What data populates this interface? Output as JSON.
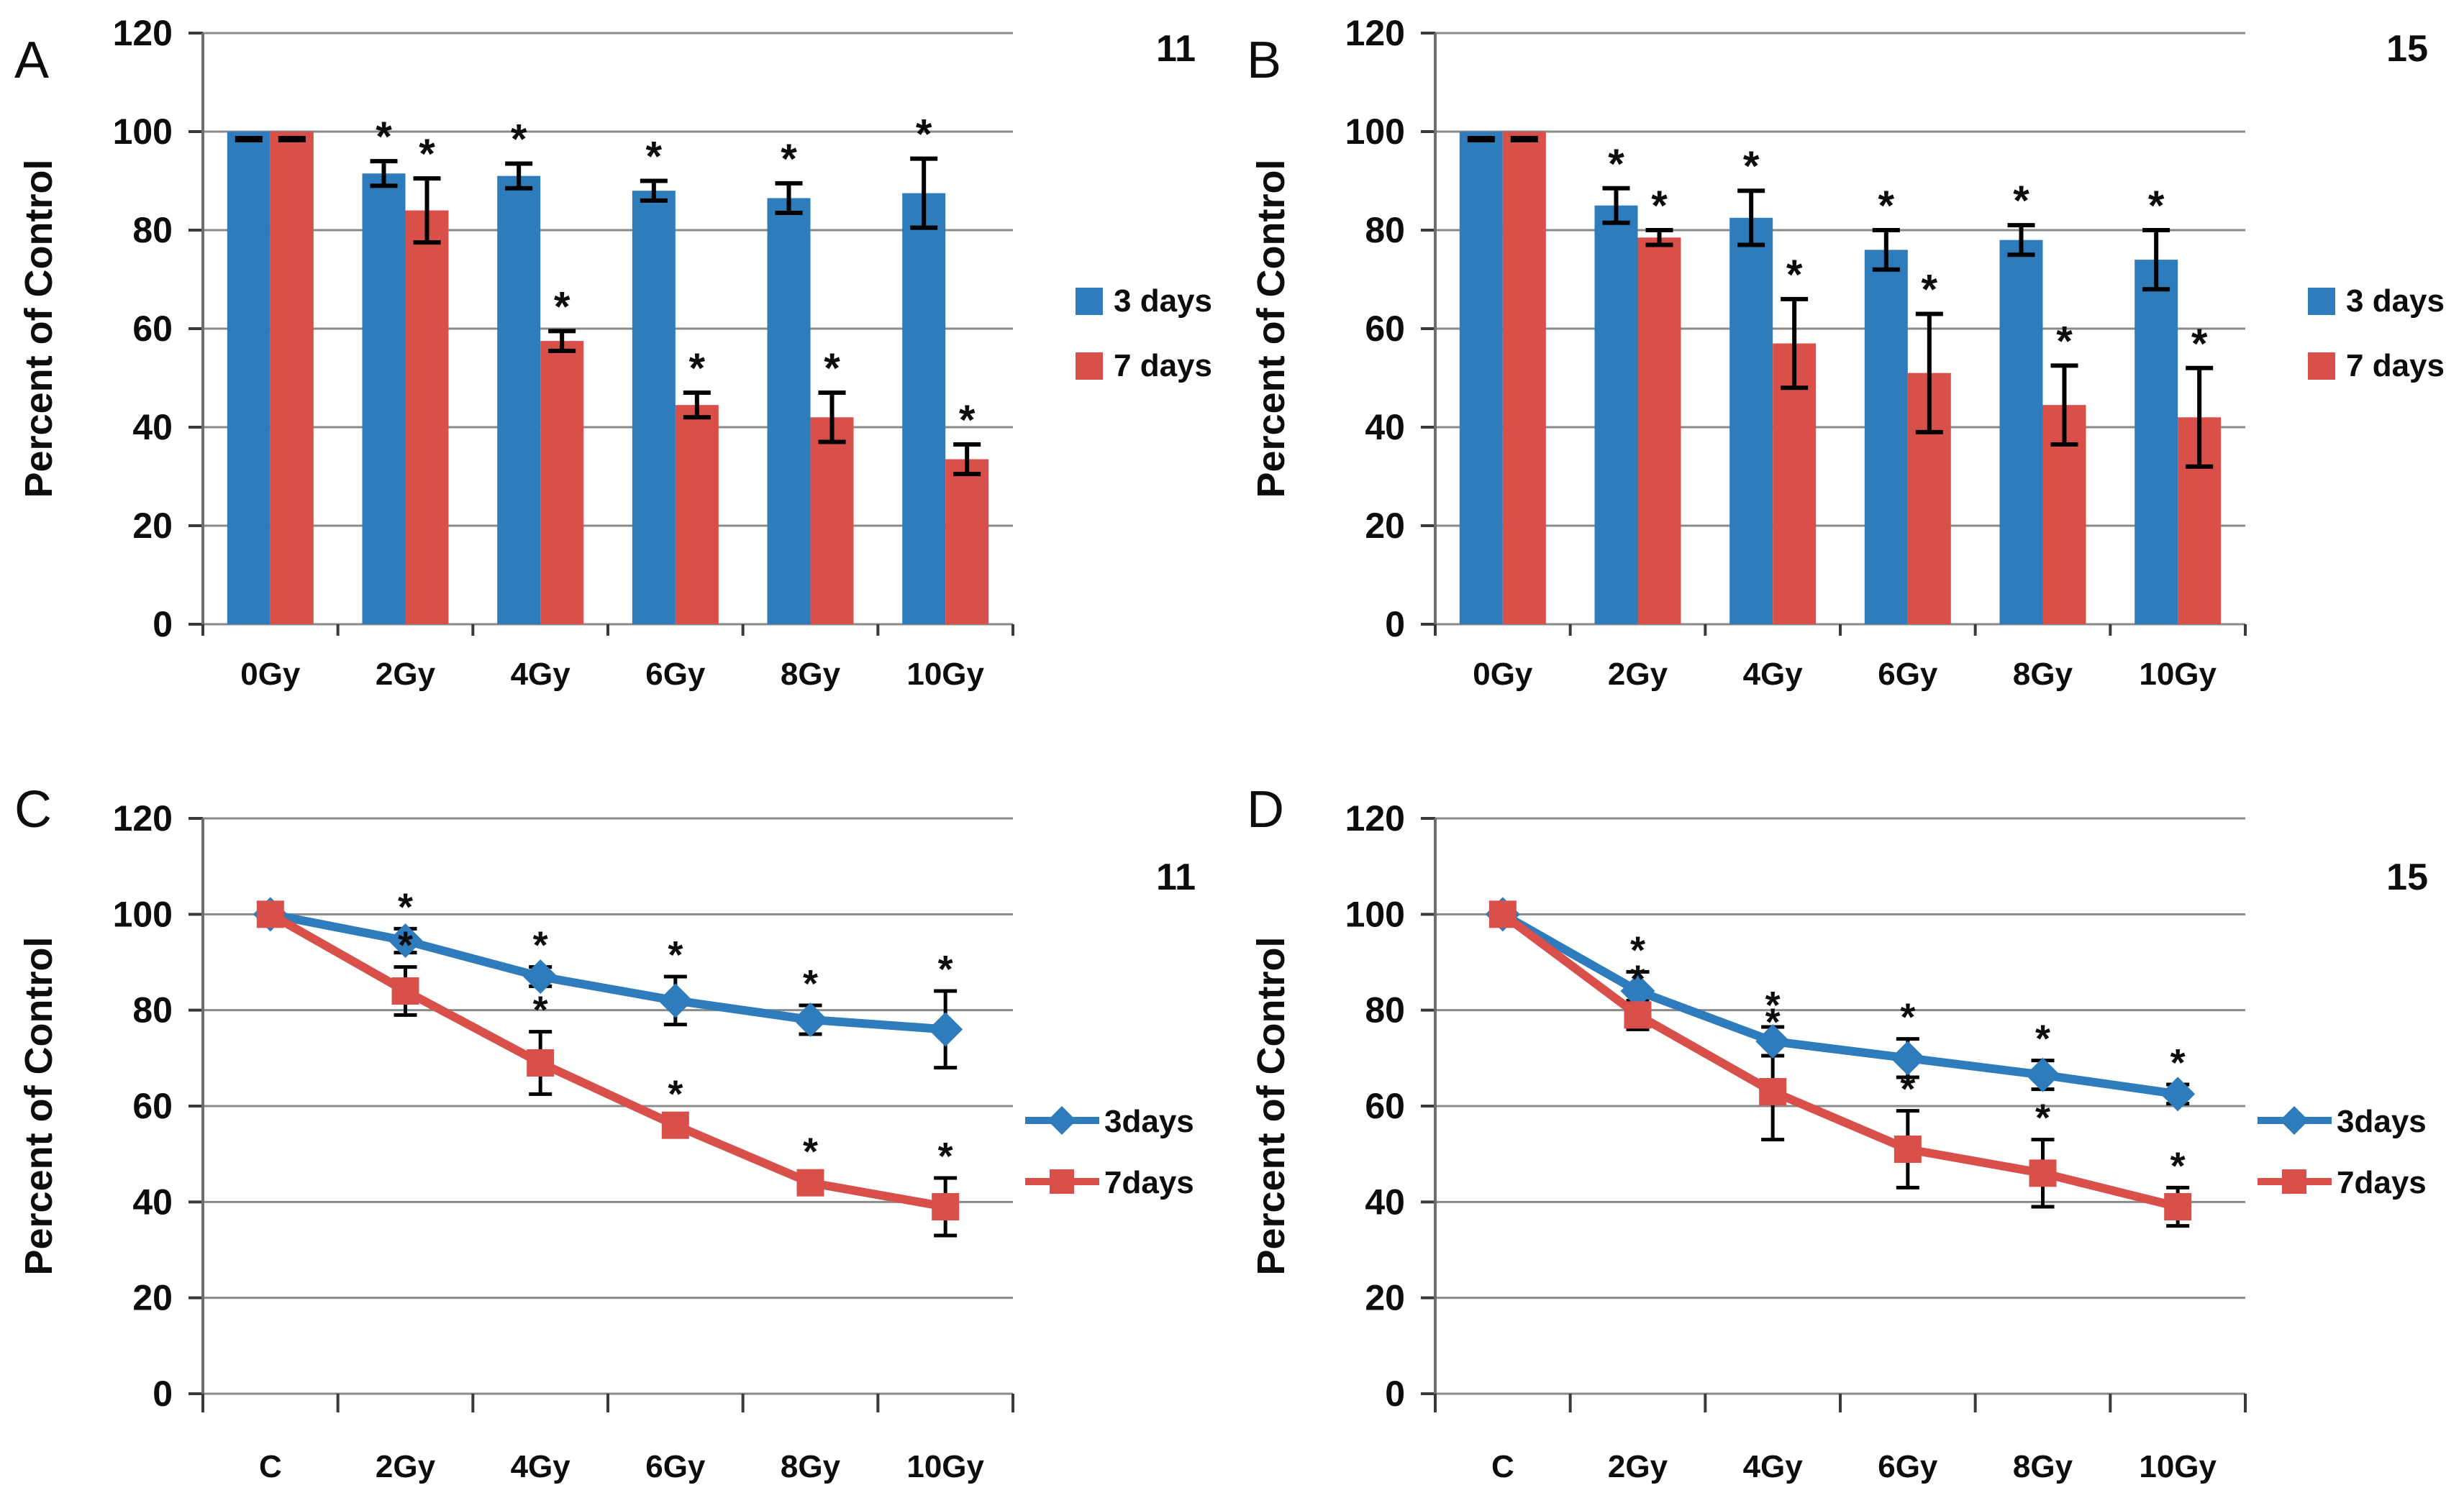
{
  "figure": {
    "background": "#ffffff",
    "ylabel": "Percent of Control",
    "colors": {
      "blue": "#2F7CBC",
      "red": "#D9504A",
      "grid": "#8a8a8a",
      "axis": "#6e6e6e",
      "tick": "#3a3a3a",
      "error_bar": "#000000",
      "text": "#0d0d0d"
    }
  },
  "chart_data": [
    {
      "panel": "A",
      "type": "bar",
      "corner_label": "11",
      "ylabel": "Percent of Control",
      "ylim": [
        0,
        120
      ],
      "yticks": [
        0,
        20,
        40,
        60,
        80,
        100,
        120
      ],
      "grid": true,
      "legend_position": "right",
      "legend_style": "square",
      "categories": [
        "0Gy",
        "2Gy",
        "4Gy",
        "6Gy",
        "8Gy",
        "10Gy"
      ],
      "series": [
        {
          "name": "3 days",
          "color_key": "blue",
          "values": [
            100,
            91.5,
            91,
            88,
            86.5,
            87.5
          ],
          "errors": [
            0,
            2.5,
            2.5,
            2,
            3,
            7
          ],
          "significant": [
            false,
            true,
            true,
            true,
            true,
            true
          ]
        },
        {
          "name": "7 days",
          "color_key": "red",
          "values": [
            100,
            84,
            57.5,
            44.5,
            42,
            33.5
          ],
          "errors": [
            0,
            6.5,
            2,
            2.5,
            5,
            3
          ],
          "significant": [
            false,
            true,
            true,
            true,
            true,
            true
          ]
        }
      ]
    },
    {
      "panel": "B",
      "type": "bar",
      "corner_label": "15",
      "ylabel": "Percent of Control",
      "ylim": [
        0,
        120
      ],
      "yticks": [
        0,
        20,
        40,
        60,
        80,
        100,
        120
      ],
      "grid": true,
      "legend_position": "right",
      "legend_style": "square",
      "categories": [
        "0Gy",
        "2Gy",
        "4Gy",
        "6Gy",
        "8Gy",
        "10Gy"
      ],
      "series": [
        {
          "name": "3 days",
          "color_key": "blue",
          "values": [
            100,
            85,
            82.5,
            76,
            78,
            74
          ],
          "errors": [
            0,
            3.5,
            5.5,
            4,
            3,
            6
          ],
          "significant": [
            false,
            true,
            true,
            true,
            true,
            true
          ]
        },
        {
          "name": "7 days",
          "color_key": "red",
          "values": [
            100,
            78.5,
            57,
            51,
            44.5,
            42
          ],
          "errors": [
            0,
            1.5,
            9,
            12,
            8,
            10
          ],
          "significant": [
            false,
            true,
            true,
            true,
            true,
            true
          ]
        }
      ]
    },
    {
      "panel": "C",
      "type": "line",
      "corner_label": "11",
      "ylabel": "Percent of Control",
      "ylim": [
        0,
        120
      ],
      "yticks": [
        0,
        20,
        40,
        60,
        80,
        100,
        120
      ],
      "grid": true,
      "legend_position": "right",
      "legend_style": "line-marker",
      "categories": [
        "C",
        "2Gy",
        "4Gy",
        "6Gy",
        "8Gy",
        "10Gy"
      ],
      "series": [
        {
          "name": "3days",
          "color_key": "blue",
          "marker": "diamond",
          "values": [
            100,
            94.5,
            87,
            82,
            78,
            76
          ],
          "errors": [
            0,
            2.5,
            2,
            5,
            3,
            8
          ],
          "significant": [
            false,
            true,
            true,
            true,
            true,
            true
          ]
        },
        {
          "name": "7days",
          "color_key": "red",
          "marker": "square",
          "values": [
            100,
            84,
            69,
            56,
            44,
            39
          ],
          "errors": [
            0,
            5,
            6.5,
            2,
            2,
            6
          ],
          "significant": [
            false,
            true,
            true,
            true,
            true,
            true
          ]
        }
      ]
    },
    {
      "panel": "D",
      "type": "line",
      "corner_label": "15",
      "ylabel": "Percent of Control",
      "ylim": [
        0,
        120
      ],
      "yticks": [
        0,
        20,
        40,
        60,
        80,
        100,
        120
      ],
      "grid": true,
      "legend_position": "right",
      "legend_style": "line-marker",
      "categories": [
        "C",
        "2Gy",
        "4Gy",
        "6Gy",
        "8Gy",
        "10Gy"
      ],
      "series": [
        {
          "name": "3days",
          "color_key": "blue",
          "marker": "diamond",
          "values": [
            100,
            84,
            73.5,
            70,
            66.5,
            62.5
          ],
          "errors": [
            0,
            4,
            3,
            4,
            3,
            2
          ],
          "significant": [
            false,
            true,
            true,
            true,
            true,
            true
          ]
        },
        {
          "name": "7days",
          "color_key": "red",
          "marker": "square",
          "values": [
            100,
            79,
            63,
            51,
            46,
            39
          ],
          "errors": [
            0,
            3,
            10,
            8,
            7,
            4
          ],
          "significant": [
            false,
            true,
            true,
            true,
            true,
            true
          ]
        }
      ]
    }
  ]
}
